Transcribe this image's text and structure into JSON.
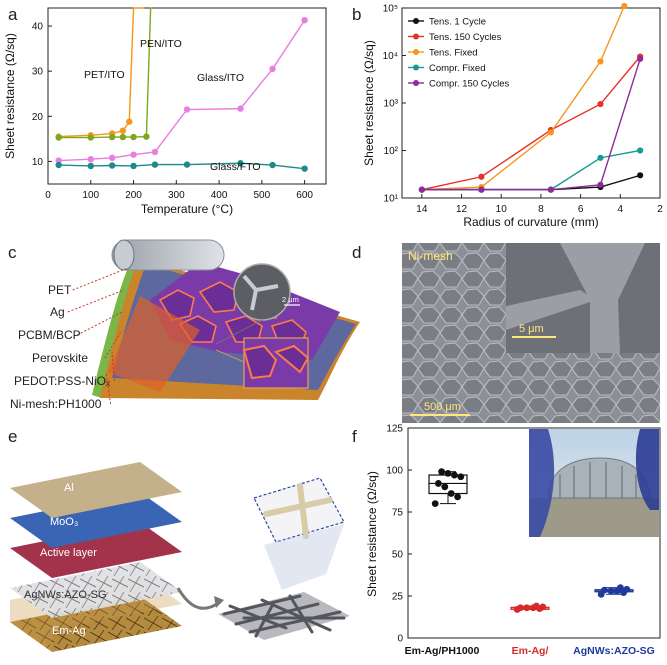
{
  "panels": {
    "a": "a",
    "b": "b",
    "c": "c",
    "d": "d",
    "e": "e",
    "f": "f"
  },
  "colors": {
    "black": "#111111",
    "red": "#e8312a",
    "orange": "#f5961e",
    "teal": "#1a9a96",
    "purple": "#8e2a9a",
    "green": "#7da81e",
    "pink": "#e87ee0",
    "tealdark": "#1e8a8a"
  },
  "chart_data": [
    {
      "id": "a",
      "type": "line",
      "xlabel": "Temperature (°C)",
      "ylabel": "Sheet resistance (Ω/sq)",
      "xlim": [
        0,
        650
      ],
      "ylim": [
        5,
        44
      ],
      "xticks": [
        0,
        100,
        200,
        300,
        400,
        500,
        600
      ],
      "yticks": [
        10,
        20,
        30,
        40
      ],
      "series": [
        {
          "name": "PET/ITO",
          "color": "#f5961e",
          "x": [
            25,
            100,
            150,
            175,
            190,
            200,
            210,
            225
          ],
          "y": [
            15.5,
            15.8,
            16.2,
            16.8,
            18.8,
            44,
            44,
            44
          ]
        },
        {
          "name": "PEN/ITO",
          "color": "#7da81e",
          "x": [
            25,
            100,
            150,
            175,
            200,
            230,
            240,
            245
          ],
          "y": [
            15.3,
            15.3,
            15.4,
            15.4,
            15.4,
            15.5,
            44,
            44
          ]
        },
        {
          "name": "Glass/ITO",
          "color": "#e87ee0",
          "x": [
            25,
            100,
            150,
            200,
            250,
            325,
            450,
            525,
            600
          ],
          "y": [
            10.2,
            10.5,
            10.8,
            11.5,
            12.1,
            21.5,
            21.7,
            30.5,
            41.3
          ]
        },
        {
          "name": "Glass/FTO",
          "color": "#1e8a8a",
          "x": [
            25,
            100,
            150,
            200,
            250,
            325,
            450,
            525,
            600
          ],
          "y": [
            9.2,
            9.0,
            9.1,
            9.0,
            9.3,
            9.3,
            9.6,
            9.2,
            8.4
          ]
        }
      ],
      "labels": {
        "PET/ITO": "PET/ITO",
        "PEN/ITO": "PEN/ITO",
        "Glass/ITO": "Glass/ITO",
        "Glass/FTO": "Glass/FTO"
      }
    },
    {
      "id": "b",
      "type": "line",
      "xlabel": "Radius of curvature (mm)",
      "ylabel": "Sheet resistance (Ω/sq)",
      "xlim": [
        15,
        2
      ],
      "ylim_log10": [
        1,
        5
      ],
      "xticks": [
        14,
        12,
        10,
        8,
        6,
        4,
        2
      ],
      "ytick_labels": [
        "10¹",
        "10²",
        "10³",
        "10⁴",
        "10⁵"
      ],
      "series": [
        {
          "name": "Tens. 1 Cycle",
          "color": "#111111",
          "x": [
            14,
            11,
            7.5,
            5,
            3
          ],
          "y": [
            15,
            15,
            15,
            17,
            30
          ]
        },
        {
          "name": "Tens. 150 Cycles",
          "color": "#e8312a",
          "x": [
            14,
            11,
            7.5,
            5,
            3
          ],
          "y": [
            15,
            28,
            270,
            950,
            9500
          ]
        },
        {
          "name": "Tens. Fixed",
          "color": "#f5961e",
          "x": [
            14,
            11,
            7.5,
            5,
            3.8
          ],
          "y": [
            15,
            17,
            240,
            7500,
            110000
          ]
        },
        {
          "name": "Compr. Fixed",
          "color": "#1a9a96",
          "x": [
            14,
            11,
            7.5,
            5,
            3
          ],
          "y": [
            15,
            15,
            15,
            70,
            100
          ]
        },
        {
          "name": "Compr. 150 Cycles",
          "color": "#8e2a9a",
          "x": [
            14,
            11,
            7.5,
            5,
            3
          ],
          "y": [
            15,
            15,
            15,
            19,
            8500
          ]
        }
      ]
    },
    {
      "id": "f",
      "type": "box",
      "ylabel": "Sheet resistance (Ω/sq)",
      "ylim": [
        0,
        125
      ],
      "yticks": [
        0,
        25,
        50,
        75,
        100,
        125
      ],
      "categories": [
        "Em-Ag/PH1000",
        "Em-Ag/",
        "AgNWs:AZO-SG"
      ],
      "category_colors": [
        "#111111",
        "#d42a2a",
        "#1f3a9a"
      ],
      "series": [
        {
          "name": "Em-Ag/PH1000",
          "values": [
            80,
            84,
            86,
            90,
            92,
            96,
            97,
            98,
            99
          ]
        },
        {
          "name": "Em-Ag/",
          "values": [
            17,
            17.5,
            18,
            18,
            18,
            18.5,
            19
          ]
        },
        {
          "name": "AgNWs:AZO-SG",
          "values": [
            26,
            27,
            28,
            28,
            28.5,
            29,
            30
          ]
        }
      ]
    }
  ],
  "c": {
    "labels": [
      "PET",
      "Ag",
      "PCBM/BCP",
      "Perovskite",
      "PEDOT:PSS-NiOₓ",
      "Ni-mesh:PH1000"
    ],
    "scale": "2 μm"
  },
  "d": {
    "title": "Ni-mesh",
    "scale_small": "5 μm",
    "scale_large": "500 μm"
  },
  "e": {
    "layers": [
      "Al",
      "MoO₃",
      "Active layer",
      "AgNWs:AZO-SG",
      "Em-Ag"
    ]
  }
}
